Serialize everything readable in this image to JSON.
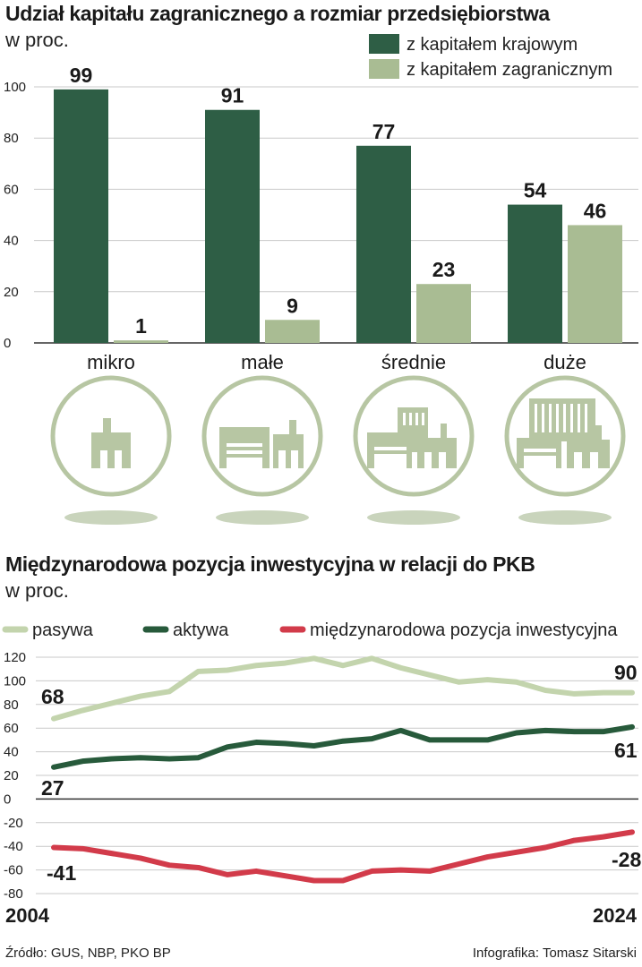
{
  "chart_data": [
    {
      "type": "bar",
      "title": "Udział kapitału zagranicznego a rozmiar przedsiębiorstwa",
      "subtitle": "w proc.",
      "categories": [
        "mikro",
        "małe",
        "średnie",
        "duże"
      ],
      "series": [
        {
          "name": "z kapitałem krajowym",
          "color": "#2e5e45",
          "values": [
            99,
            91,
            77,
            54
          ]
        },
        {
          "name": "z kapitałem zagranicznym",
          "color": "#a9bc93",
          "values": [
            1,
            9,
            23,
            46
          ]
        }
      ],
      "ylim": [
        0,
        100
      ],
      "yticks": [
        0,
        20,
        40,
        60,
        80,
        100
      ],
      "grid": true,
      "legend": "top-right",
      "icons": [
        "micro-factory-icon",
        "small-factory-icon",
        "medium-factory-icon",
        "large-factory-icon"
      ]
    },
    {
      "type": "line",
      "title": "Międzynarodowa pozycja inwestycyjna w relacji do PKB",
      "subtitle": "w proc.",
      "x": [
        2004,
        2005,
        2006,
        2007,
        2008,
        2009,
        2010,
        2011,
        2012,
        2013,
        2014,
        2015,
        2016,
        2017,
        2018,
        2019,
        2020,
        2021,
        2022,
        2023,
        2024
      ],
      "xlabels": [
        "2004",
        "2024"
      ],
      "series": [
        {
          "name": "pasywa",
          "color": "#c3d4ad",
          "start_label": "68",
          "end_label": "90",
          "values": [
            68,
            75,
            81,
            87,
            91,
            108,
            109,
            113,
            115,
            119,
            113,
            119,
            111,
            105,
            99,
            101,
            99,
            92,
            89,
            90,
            90
          ]
        },
        {
          "name": "aktywa",
          "color": "#275a3b",
          "start_label": "27",
          "end_label": "61",
          "values": [
            27,
            32,
            34,
            35,
            34,
            35,
            44,
            48,
            47,
            45,
            49,
            51,
            58,
            50,
            50,
            50,
            56,
            58,
            57,
            57,
            61
          ]
        },
        {
          "name": "międzynarodowa pozycja inwestycyjna",
          "color": "#d23b4a",
          "start_label": "-41",
          "end_label": "-28",
          "values": [
            -41,
            -42,
            -46,
            -50,
            -56,
            -58,
            -64,
            -61,
            -65,
            -69,
            -69,
            -61,
            -60,
            -61,
            -55,
            -49,
            -45,
            -41,
            -35,
            -32,
            -28
          ]
        }
      ],
      "ylim": [
        -80,
        120
      ],
      "yticks": [
        -80,
        -60,
        -40,
        -20,
        0,
        20,
        40,
        60,
        80,
        100,
        120
      ],
      "grid": true,
      "legend": "top"
    }
  ],
  "footer": {
    "source": "Źródło: GUS, NBP, PKO BP",
    "credit": "Infografika: Tomasz Sitarski"
  }
}
